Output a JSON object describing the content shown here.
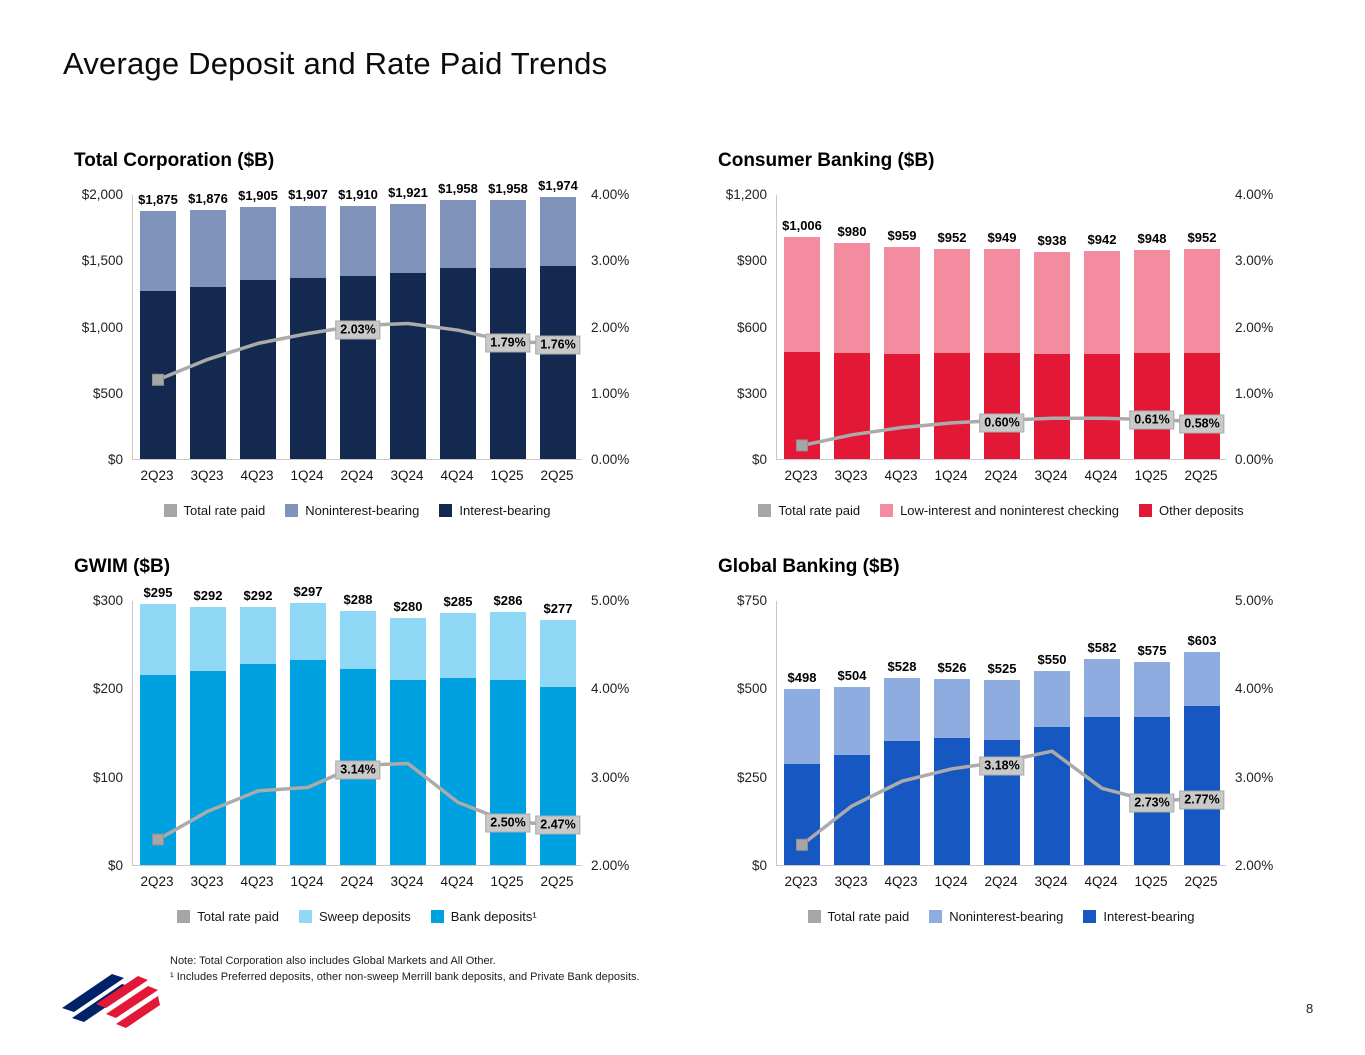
{
  "slide": {
    "title": "Average Deposit and Rate Paid Trends",
    "page_number": "8",
    "note_line1": "Note: Total Corporation also includes Global Markets and All Other.",
    "note_line2": "¹ Includes Preferred deposits, other non-sweep Merrill bank deposits, and Private Bank deposits."
  },
  "colors": {
    "rate_line": "#ababab",
    "rate_label_bg": "#c9c9c9",
    "marker": "#a6a6a6",
    "logo_blue": "#012169",
    "logo_red": "#e31837"
  },
  "chart_data": [
    {
      "type": "bar+line",
      "title": "Total Corporation ($B)",
      "categories": [
        "2Q23",
        "3Q23",
        "4Q23",
        "1Q24",
        "2Q24",
        "3Q24",
        "4Q24",
        "1Q25",
        "2Q25"
      ],
      "total_labels": [
        "$1,875",
        "$1,876",
        "$1,905",
        "$1,907",
        "$1,910",
        "$1,921",
        "$1,958",
        "$1,958",
        "$1,974"
      ],
      "series": [
        {
          "name": "Interest-bearing",
          "color": "#14294f",
          "values": [
            1270,
            1300,
            1350,
            1365,
            1385,
            1405,
            1440,
            1445,
            1460
          ]
        },
        {
          "name": "Noninterest-bearing",
          "color": "#8093ba",
          "values": [
            605,
            576,
            555,
            542,
            525,
            516,
            518,
            513,
            514
          ]
        }
      ],
      "ylim": [
        0,
        2000
      ],
      "yticks": [
        [
          0,
          "$0"
        ],
        [
          500,
          "$500"
        ],
        [
          1000,
          "$1,000"
        ],
        [
          1500,
          "$1,500"
        ],
        [
          2000,
          "$2,000"
        ]
      ],
      "rlim": [
        0,
        4
      ],
      "rticks": [
        [
          0,
          "0.00%"
        ],
        [
          1,
          "1.00%"
        ],
        [
          2,
          "2.00%"
        ],
        [
          3,
          "3.00%"
        ],
        [
          4,
          "4.00%"
        ]
      ],
      "rate_line": {
        "name": "Total rate paid",
        "values": [
          1.21,
          1.52,
          1.76,
          1.91,
          2.03,
          2.06,
          1.96,
          1.79,
          1.76
        ],
        "labels": [
          {
            "index": 4,
            "text": "2.03%",
            "dy": 4
          },
          {
            "index": 7,
            "text": "1.79%",
            "dy": 2
          },
          {
            "index": 8,
            "text": "1.76%",
            "dy": 2
          }
        ]
      }
    },
    {
      "type": "bar+line",
      "title": "Consumer Banking ($B)",
      "categories": [
        "2Q23",
        "3Q23",
        "4Q23",
        "1Q24",
        "2Q24",
        "3Q24",
        "4Q24",
        "1Q25",
        "2Q25"
      ],
      "total_labels": [
        "$1,006",
        "$980",
        "$959",
        "$952",
        "$949",
        "$938",
        "$942",
        "$948",
        "$952"
      ],
      "series": [
        {
          "name": "Other deposits",
          "color": "#e31837",
          "values": [
            485,
            480,
            475,
            478,
            478,
            475,
            475,
            478,
            478
          ]
        },
        {
          "name": "Low-interest and noninterest checking",
          "color": "#f48ca0",
          "values": [
            521,
            500,
            484,
            474,
            471,
            463,
            467,
            470,
            474
          ]
        }
      ],
      "ylim": [
        0,
        1200
      ],
      "yticks": [
        [
          0,
          "$0"
        ],
        [
          300,
          "$300"
        ],
        [
          600,
          "$600"
        ],
        [
          900,
          "$900"
        ],
        [
          1200,
          "$1,200"
        ]
      ],
      "rlim": [
        0,
        4
      ],
      "rticks": [
        [
          0,
          "0.00%"
        ],
        [
          1,
          "1.00%"
        ],
        [
          2,
          "2.00%"
        ],
        [
          3,
          "3.00%"
        ],
        [
          4,
          "4.00%"
        ]
      ],
      "rate_line": {
        "name": "Total rate paid",
        "values": [
          0.22,
          0.38,
          0.49,
          0.56,
          0.6,
          0.63,
          0.63,
          0.61,
          0.58
        ],
        "labels": [
          {
            "index": 4,
            "text": "0.60%",
            "dy": 3
          },
          {
            "index": 7,
            "text": "0.61%",
            "dy": 0
          },
          {
            "index": 8,
            "text": "0.58%",
            "dy": 2
          }
        ]
      }
    },
    {
      "type": "bar+line",
      "title": "GWIM ($B)",
      "categories": [
        "2Q23",
        "3Q23",
        "4Q23",
        "1Q24",
        "2Q24",
        "3Q24",
        "4Q24",
        "1Q25",
        "2Q25"
      ],
      "total_labels": [
        "$295",
        "$292",
        "$292",
        "$297",
        "$288",
        "$280",
        "$285",
        "$286",
        "$277"
      ],
      "series": [
        {
          "name": "Bank deposits¹",
          "color": "#00a1e0",
          "values": [
            215,
            220,
            227,
            232,
            222,
            210,
            212,
            210,
            202
          ]
        },
        {
          "name": "Sweep deposits",
          "color": "#8fd9f6",
          "values": [
            80,
            72,
            65,
            65,
            66,
            70,
            73,
            76,
            75
          ]
        }
      ],
      "ylim": [
        0,
        300
      ],
      "yticks": [
        [
          0,
          "$0"
        ],
        [
          100,
          "$100"
        ],
        [
          200,
          "$200"
        ],
        [
          300,
          "$300"
        ]
      ],
      "rlim": [
        2,
        5
      ],
      "rticks": [
        [
          2,
          "2.00%"
        ],
        [
          3,
          "3.00%"
        ],
        [
          4,
          "4.00%"
        ],
        [
          5,
          "5.00%"
        ]
      ],
      "rate_line": {
        "name": "Total rate paid",
        "values": [
          2.3,
          2.62,
          2.85,
          2.89,
          3.14,
          3.16,
          2.72,
          2.5,
          2.47
        ],
        "labels": [
          {
            "index": 4,
            "text": "3.14%",
            "dy": 5
          },
          {
            "index": 7,
            "text": "2.50%",
            "dy": 1
          },
          {
            "index": 8,
            "text": "2.47%",
            "dy": 1
          }
        ]
      }
    },
    {
      "type": "bar+line",
      "title": "Global Banking ($B)",
      "categories": [
        "2Q23",
        "3Q23",
        "4Q23",
        "1Q24",
        "2Q24",
        "3Q24",
        "4Q24",
        "1Q25",
        "2Q25"
      ],
      "total_labels": [
        "$498",
        "$504",
        "$528",
        "$526",
        "$525",
        "$550",
        "$582",
        "$575",
        "$603"
      ],
      "series": [
        {
          "name": "Interest-bearing",
          "color": "#1757c2",
          "values": [
            285,
            310,
            350,
            360,
            355,
            390,
            420,
            420,
            450
          ]
        },
        {
          "name": "Noninterest-bearing",
          "color": "#8face0",
          "values": [
            213,
            194,
            178,
            166,
            170,
            160,
            162,
            155,
            153
          ]
        }
      ],
      "ylim": [
        0,
        750
      ],
      "yticks": [
        [
          0,
          "$0"
        ],
        [
          250,
          "$250"
        ],
        [
          500,
          "$500"
        ],
        [
          750,
          "$750"
        ]
      ],
      "rlim": [
        2,
        5
      ],
      "rticks": [
        [
          2,
          "2.00%"
        ],
        [
          3,
          "3.00%"
        ],
        [
          4,
          "4.00%"
        ],
        [
          5,
          "5.00%"
        ]
      ],
      "rate_line": {
        "name": "Total rate paid",
        "values": [
          2.24,
          2.68,
          2.96,
          3.1,
          3.18,
          3.3,
          2.88,
          2.73,
          2.77
        ],
        "labels": [
          {
            "index": 4,
            "text": "3.18%",
            "dy": 4
          },
          {
            "index": 7,
            "text": "2.73%",
            "dy": 1
          },
          {
            "index": 8,
            "text": "2.77%",
            "dy": 2
          }
        ]
      }
    }
  ]
}
